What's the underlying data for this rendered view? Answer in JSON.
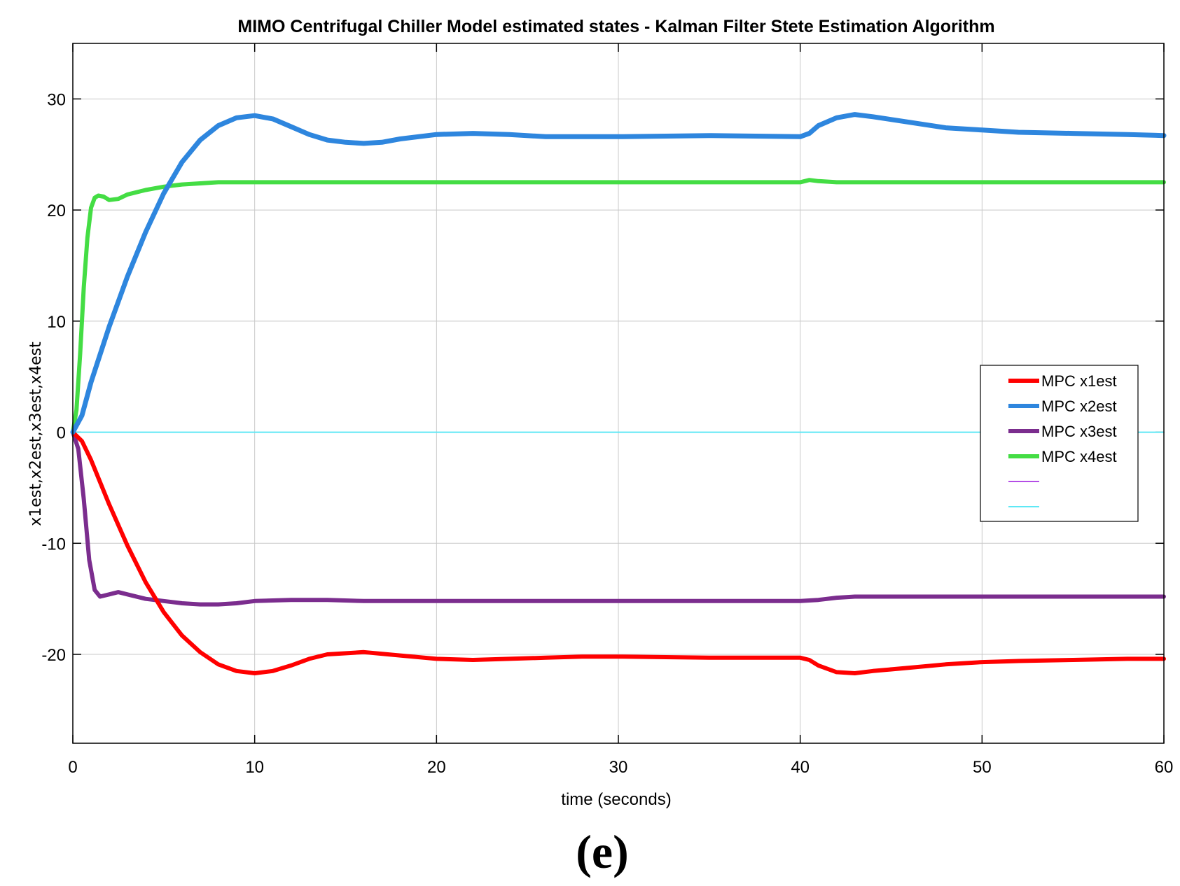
{
  "chart_data": {
    "type": "line",
    "title": "MIMO Centrifugal Chiller Model  estimated states - Kalman Filter  Stete Estimation Algorithm",
    "xlabel": "time (seconds)",
    "ylabel": "x1est,x2est,x3est,x4est",
    "caption": "(e)",
    "xlim": [
      0,
      60
    ],
    "ylim": [
      -28,
      35
    ],
    "xticks": [
      0,
      10,
      20,
      30,
      40,
      50,
      60
    ],
    "yticks": [
      -20,
      -10,
      0,
      10,
      20,
      30
    ],
    "grid": true,
    "legend_position": "right",
    "series": [
      {
        "name": "MPC  x1est",
        "color": "#ff0000",
        "width": 6,
        "x": [
          0,
          0.5,
          1,
          2,
          3,
          4,
          5,
          6,
          7,
          8,
          9,
          10,
          11,
          12,
          13,
          14,
          16,
          18,
          20,
          22,
          24,
          26,
          28,
          30,
          35,
          40,
          40.5,
          41,
          42,
          43,
          44,
          46,
          48,
          50,
          52,
          55,
          58,
          60
        ],
        "y": [
          0,
          -0.8,
          -2.5,
          -6.5,
          -10.2,
          -13.5,
          -16.2,
          -18.3,
          -19.8,
          -20.9,
          -21.5,
          -21.7,
          -21.5,
          -21,
          -20.4,
          -20,
          -19.8,
          -20.1,
          -20.4,
          -20.5,
          -20.4,
          -20.3,
          -20.2,
          -20.2,
          -20.3,
          -20.3,
          -20.5,
          -21,
          -21.6,
          -21.7,
          -21.5,
          -21.2,
          -20.9,
          -20.7,
          -20.6,
          -20.5,
          -20.4,
          -20.4
        ]
      },
      {
        "name": "MPC  x2est",
        "color": "#2e86de",
        "width": 7,
        "x": [
          0,
          0.5,
          1,
          2,
          3,
          4,
          5,
          6,
          7,
          8,
          9,
          10,
          11,
          12,
          13,
          14,
          15,
          16,
          17,
          18,
          20,
          22,
          24,
          26,
          28,
          30,
          35,
          40,
          40.5,
          41,
          42,
          43,
          44,
          46,
          48,
          50,
          52,
          55,
          58,
          60
        ],
        "y": [
          0,
          1.5,
          4.5,
          9.5,
          14,
          18,
          21.5,
          24.3,
          26.3,
          27.6,
          28.3,
          28.5,
          28.2,
          27.5,
          26.8,
          26.3,
          26.1,
          26,
          26.1,
          26.4,
          26.8,
          26.9,
          26.8,
          26.6,
          26.6,
          26.6,
          26.7,
          26.6,
          26.9,
          27.6,
          28.3,
          28.6,
          28.4,
          27.9,
          27.4,
          27.2,
          27,
          26.9,
          26.8,
          26.7
        ]
      },
      {
        "name": "MPC x3est",
        "color": "#7b2d8e",
        "width": 6,
        "x": [
          0,
          0.3,
          0.6,
          0.9,
          1.2,
          1.5,
          2,
          2.5,
          3,
          4,
          5,
          6,
          7,
          8,
          9,
          10,
          12,
          14,
          16,
          20,
          25,
          30,
          35,
          40,
          41,
          42,
          43,
          44,
          46,
          50,
          55,
          60
        ],
        "y": [
          0,
          -1.5,
          -6,
          -11.5,
          -14.2,
          -14.8,
          -14.6,
          -14.4,
          -14.6,
          -15,
          -15.2,
          -15.4,
          -15.5,
          -15.5,
          -15.4,
          -15.2,
          -15.1,
          -15.1,
          -15.2,
          -15.2,
          -15.2,
          -15.2,
          -15.2,
          -15.2,
          -15.1,
          -14.9,
          -14.8,
          -14.8,
          -14.8,
          -14.8,
          -14.8,
          -14.8
        ]
      },
      {
        "name": "MPC x4est",
        "color": "#44dd44",
        "width": 6,
        "x": [
          0,
          0.2,
          0.4,
          0.6,
          0.8,
          1,
          1.2,
          1.4,
          1.7,
          2,
          2.5,
          3,
          4,
          5,
          6,
          7,
          8,
          10,
          15,
          20,
          30,
          40,
          40.5,
          41,
          42,
          45,
          50,
          55,
          60
        ],
        "y": [
          0,
          2,
          7,
          13,
          17.5,
          20.2,
          21.1,
          21.3,
          21.2,
          20.9,
          21,
          21.4,
          21.8,
          22.1,
          22.3,
          22.4,
          22.5,
          22.5,
          22.5,
          22.5,
          22.5,
          22.5,
          22.7,
          22.6,
          22.5,
          22.5,
          22.5,
          22.5,
          22.5
        ]
      },
      {
        "name": "",
        "color": "#b44ee6",
        "width": 2,
        "x": [],
        "y": []
      },
      {
        "name": "",
        "color": "#5fe8f5",
        "width": 2,
        "x": [
          0,
          60
        ],
        "y": [
          0,
          0
        ]
      }
    ]
  }
}
